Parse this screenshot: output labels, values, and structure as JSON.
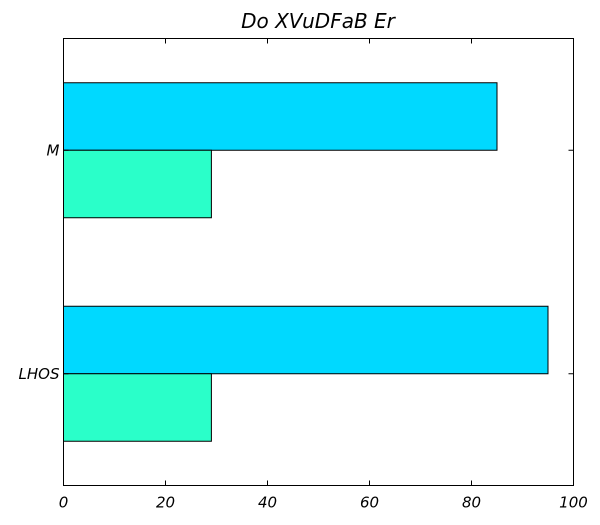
{
  "chart_data": {
    "type": "bar",
    "orientation": "horizontal",
    "title": "Do XVuDFaB Er",
    "xlabel": "",
    "ylabel": "",
    "categories": [
      "LHOS",
      "M"
    ],
    "series": [
      {
        "color": "#00d9ff",
        "values": [
          95,
          85
        ]
      },
      {
        "color": "#2affc9",
        "values": [
          29,
          29
        ]
      }
    ],
    "xlim": [
      0,
      100
    ],
    "xticks": [
      0,
      20,
      40,
      60,
      80,
      100
    ],
    "xtick_labels": [
      "0",
      "20",
      "40",
      "60",
      "80",
      "100"
    ],
    "grid": false,
    "legend": "none"
  }
}
